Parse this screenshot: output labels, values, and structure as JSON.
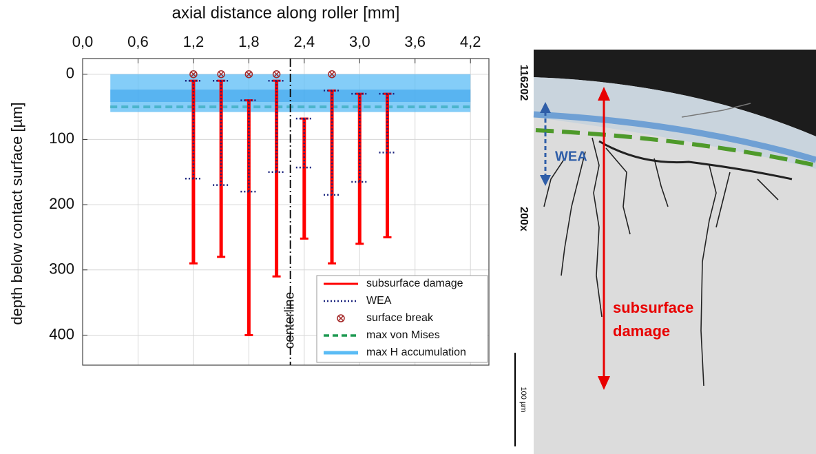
{
  "chart_data": {
    "type": "range-bar",
    "x_label": "axial distance along roller [mm]",
    "y_label": "depth below contact surface [µm]",
    "xlim": [
      0,
      4.4
    ],
    "ylim": [
      -24,
      446
    ],
    "y_inverted": true,
    "grid": true,
    "xticks": [
      {
        "value": 0,
        "label": "0,0"
      },
      {
        "value": 0.6,
        "label": "0,6"
      },
      {
        "value": 1.2,
        "label": "1,2"
      },
      {
        "value": 1.8,
        "label": "1,8"
      },
      {
        "value": 2.4,
        "label": "2,4"
      },
      {
        "value": 3.0,
        "label": "3,0"
      },
      {
        "value": 3.6,
        "label": "3,6"
      },
      {
        "value": 4.2,
        "label": "4,2"
      }
    ],
    "yticks": [
      0,
      100,
      200,
      300,
      400
    ],
    "centerline": {
      "x": 2.25,
      "label": "centerline"
    },
    "series": [
      {
        "name": "subsurface damage",
        "color": "#ff0000",
        "kind": "range",
        "x": [
          1.2,
          1.5,
          1.8,
          2.1,
          2.4,
          2.7,
          3.0,
          3.3
        ],
        "top": [
          10,
          10,
          40,
          10,
          68,
          25,
          30,
          30
        ],
        "bottom": [
          290,
          280,
          400,
          310,
          252,
          290,
          260,
          250
        ]
      },
      {
        "name": "WEA",
        "color": "#1a237e",
        "kind": "dotted-drop",
        "x": [
          1.2,
          1.5,
          1.8,
          2.1,
          2.4,
          2.7,
          3.0,
          3.3
        ],
        "top": [
          10,
          10,
          40,
          10,
          68,
          25,
          30,
          30
        ],
        "values": [
          160,
          170,
          180,
          150,
          143,
          185,
          165,
          120
        ]
      },
      {
        "name": "surface break",
        "color": "#a52a2a",
        "kind": "marker",
        "x": [
          1.2,
          1.5,
          1.8,
          2.1,
          2.7
        ],
        "values": [
          0,
          0,
          0,
          0,
          0
        ]
      },
      {
        "name": "max von Mises",
        "color": "#1e9a52",
        "kind": "dashed-line",
        "x": [
          0.3,
          4.2
        ],
        "values": [
          50,
          50
        ]
      },
      {
        "name": "max H accumulation",
        "color": "#5bbcf5",
        "kind": "band",
        "x": [
          0.3,
          4.2
        ],
        "top": [
          0,
          0
        ],
        "bottom": [
          58,
          58
        ],
        "values": [
          33,
          33
        ]
      }
    ],
    "legend": "lower right"
  },
  "micrograph": {
    "sample_id": "116202",
    "magnification": "200x",
    "scale_bar": "100 µm",
    "wea_label": "WEA",
    "damage_label": [
      "subsurface",
      "damage"
    ]
  }
}
